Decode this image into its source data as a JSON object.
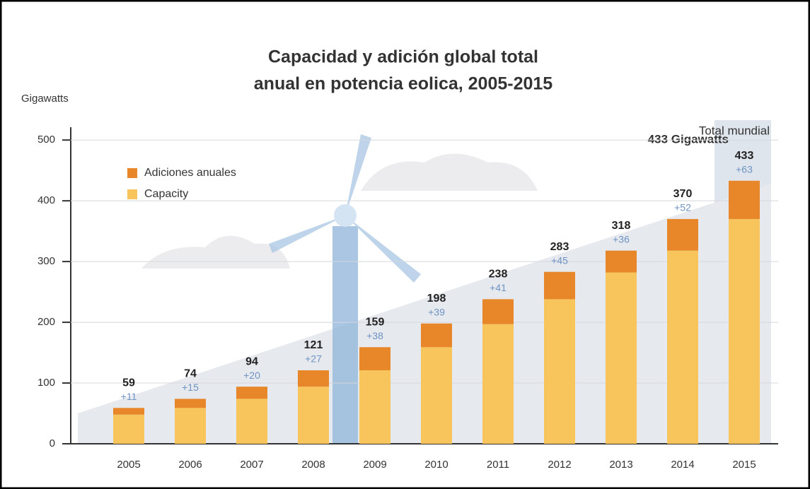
{
  "chart_data": {
    "type": "stacked_bar",
    "title_lines": [
      "Capacidad y adición global total",
      "anual en potencia eolica, 2005-2015"
    ],
    "y_axis_label": "Gigawatts",
    "annotation_top": "Total mundial",
    "annotation_total": "433 Gigawatts",
    "categories": [
      "2005",
      "2006",
      "2007",
      "2008",
      "2009",
      "2010",
      "2011",
      "2012",
      "2013",
      "2014",
      "2015"
    ],
    "series": [
      {
        "name": "Capacity",
        "color": "#f8c45c",
        "values": [
          48,
          59,
          74,
          94,
          121,
          159,
          197,
          238,
          282,
          318,
          370
        ]
      },
      {
        "name": "Adiciones anuales",
        "color": "#e8862a",
        "values": [
          11,
          15,
          20,
          27,
          38,
          39,
          41,
          45,
          36,
          52,
          63
        ],
        "value_labels": [
          "+11",
          "+15",
          "+20",
          "+27",
          "+38",
          "+39",
          "+41",
          "+45",
          "+36",
          "+52",
          "+63"
        ]
      }
    ],
    "totals": [
      59,
      74,
      94,
      121,
      159,
      198,
      238,
      283,
      318,
      370,
      433
    ],
    "ylim": [
      0,
      520
    ],
    "yticks": [
      0,
      100,
      200,
      300,
      400,
      500
    ],
    "grid": true
  }
}
